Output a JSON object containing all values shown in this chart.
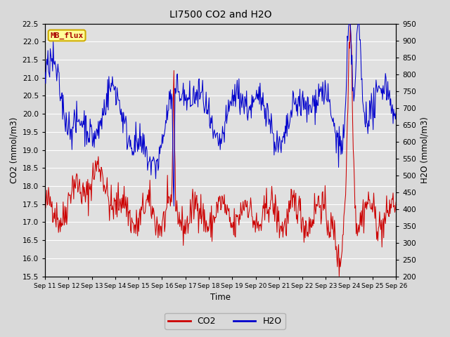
{
  "title": "LI7500 CO2 and H2O",
  "xlabel": "Time",
  "ylabel_left": "CO2 (mmol/m3)",
  "ylabel_right": "H2O (mmol/m3)",
  "ylim_left": [
    15.5,
    22.5
  ],
  "ylim_right": [
    200,
    950
  ],
  "co2_color": "#cc0000",
  "h2o_color": "#0000cc",
  "fig_bg": "#d9d9d9",
  "plot_bg": "#e0e0e0",
  "grid_color": "#ffffff",
  "x_tick_labels": [
    "Sep 11",
    "Sep 12",
    "Sep 13",
    "Sep 14",
    "Sep 15",
    "Sep 16",
    "Sep 17",
    "Sep 18",
    "Sep 19",
    "Sep 20",
    "Sep 21",
    "Sep 22",
    "Sep 23",
    "Sep 24",
    "Sep 25",
    "Sep 26"
  ],
  "yticks_left": [
    15.5,
    16.0,
    16.5,
    17.0,
    17.5,
    18.0,
    18.5,
    19.0,
    19.5,
    20.0,
    20.5,
    21.0,
    21.5,
    22.0,
    22.5
  ],
  "yticks_right": [
    200,
    250,
    300,
    350,
    400,
    450,
    500,
    550,
    600,
    650,
    700,
    750,
    800,
    850,
    900,
    950
  ],
  "n_points": 600,
  "seed": 42
}
